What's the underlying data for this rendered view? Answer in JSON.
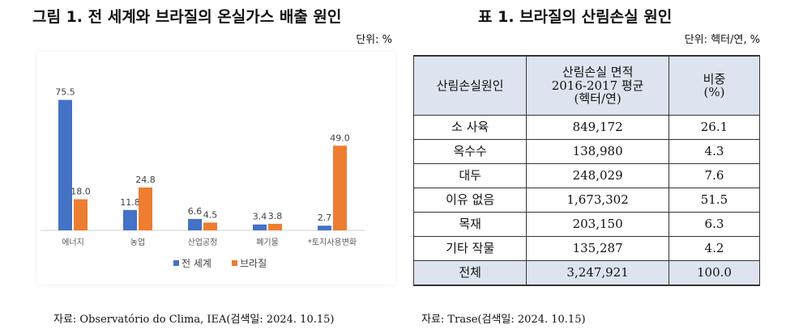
{
  "figure": {
    "title": "그림 1. 전 세계와 브라질의 온실가스 배출 원인",
    "unit": "단위: %",
    "source": "자료: Observatório do Clima, IEA(검색일: 2024. 10.15)"
  },
  "chart_data": {
    "type": "bar",
    "categories": [
      "에너지",
      "농업",
      "산업공정",
      "폐기물",
      "*토지사용변화"
    ],
    "series": [
      {
        "name": "전 세계",
        "color": "#4472c4",
        "values": [
          75.5,
          11.8,
          6.6,
          3.4,
          2.7
        ]
      },
      {
        "name": "브라질",
        "color": "#ed7d31",
        "values": [
          18.0,
          24.8,
          4.5,
          3.8,
          49.0
        ]
      }
    ],
    "value_labels": [
      [
        "75.5",
        "11.8",
        "6.6",
        "3.4",
        "2.7"
      ],
      [
        "18.0",
        "24.8",
        "4.5",
        "3.8",
        "49.0"
      ]
    ],
    "title": "",
    "xlabel": "",
    "ylabel": "",
    "ylim": [
      0,
      80
    ],
    "grid": false,
    "legend": "bottom"
  },
  "table": {
    "title": "표 1. 브라질의 산림손실 원인",
    "unit": "단위: 헥터/연, %",
    "headers": [
      "산림손실원인",
      "산림손실 면적\n2016-2017 평균\n(헥터/연)",
      "비중\n(%)"
    ],
    "rows": [
      [
        "소 사육",
        "849,172",
        "26.1"
      ],
      [
        "옥수수",
        "138,980",
        "4.3"
      ],
      [
        "대두",
        "248,029",
        "7.6"
      ],
      [
        "이유 없음",
        "1,673,302",
        "51.5"
      ],
      [
        "목재",
        "203,150",
        "6.3"
      ],
      [
        "기타 작물",
        "135,287",
        "4.2"
      ]
    ],
    "total": [
      "전체",
      "3,247,921",
      "100.0"
    ],
    "source": "자료: Trase(검색일: 2024. 10.15)"
  }
}
